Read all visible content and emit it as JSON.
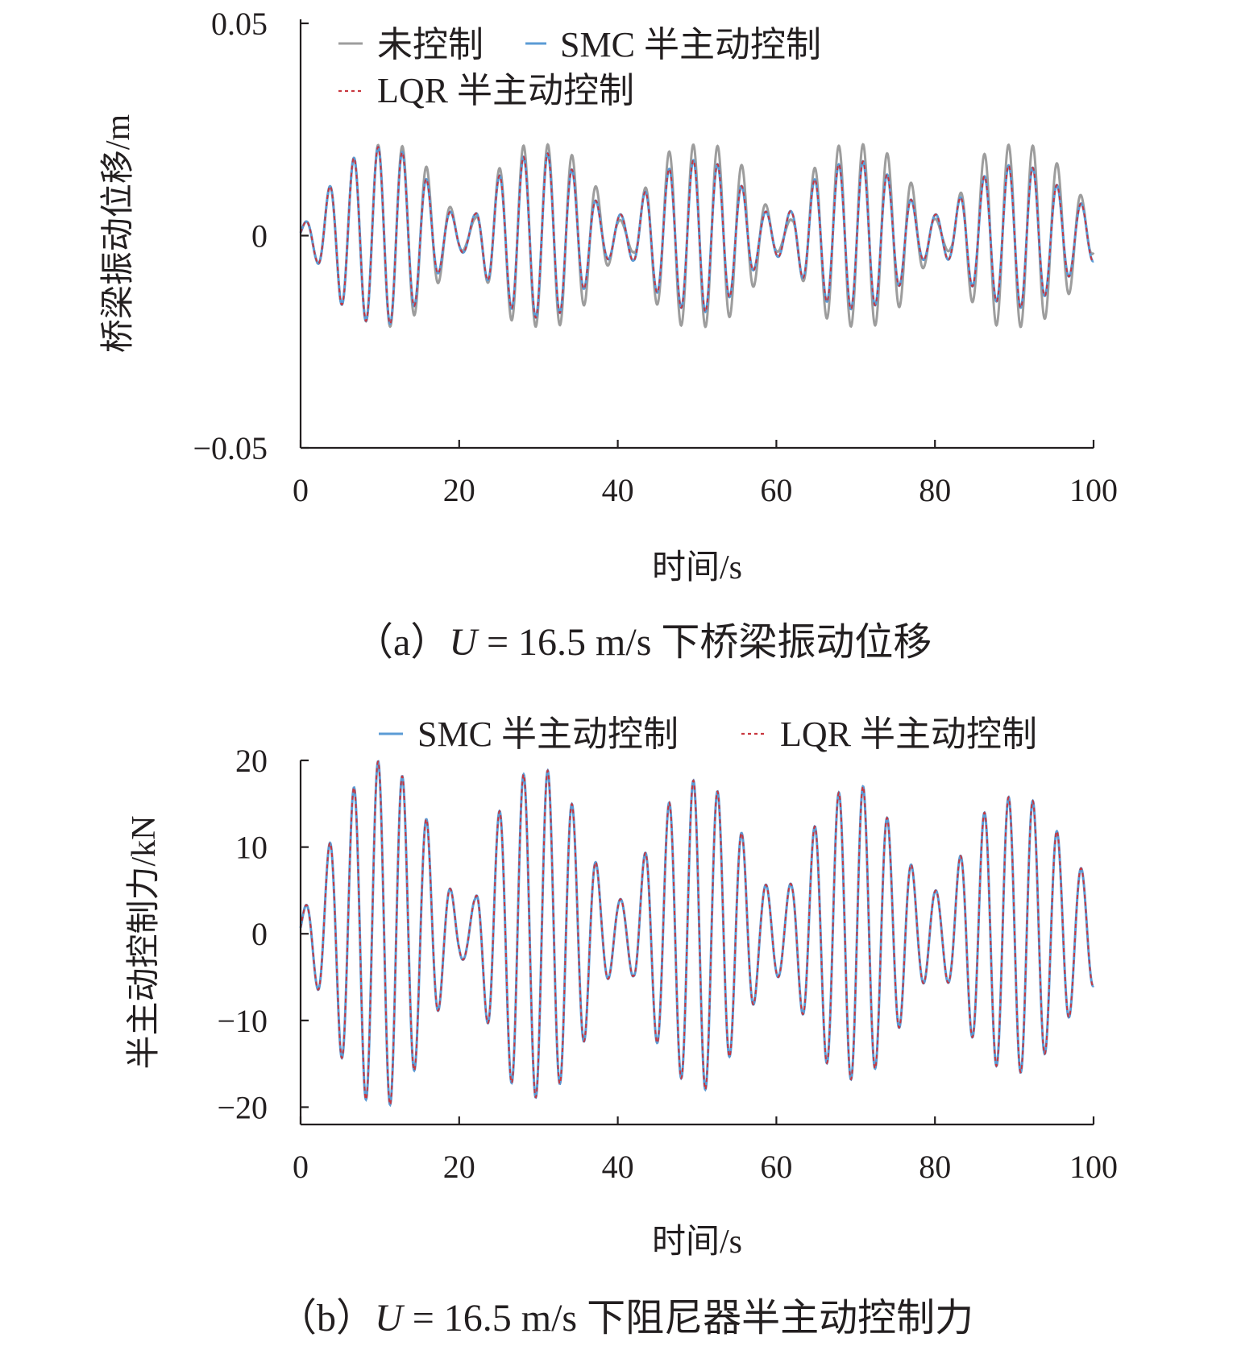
{
  "chart_data": [
    {
      "type": "line",
      "id": "a",
      "caption_prefix": "（a）",
      "caption_var": "U",
      "caption_rest": " = 16.5 m/s 下桥梁振动位移",
      "xlabel": "时间/s",
      "ylabel": "桥梁振动位移/m",
      "xlim": [
        0,
        100
      ],
      "ylim": [
        -0.05,
        0.05
      ],
      "xticks": [
        0,
        20,
        40,
        60,
        80,
        100
      ],
      "xtick_labels": [
        "0",
        "20",
        "40",
        "60",
        "80",
        "100"
      ],
      "yticks": [
        0.05,
        0,
        -0.05
      ],
      "ytick_labels": [
        "0.05",
        "0",
        "−0.05"
      ],
      "legend_position": "top-left",
      "frequency_hz": 0.327,
      "series": [
        {
          "name": "未控制",
          "color": "#9d9d9d",
          "style": "solid",
          "envelope": {
            "t": [
              0,
              2,
              5,
              8,
              10,
              11,
              13,
              16,
              18,
              20,
              21,
              22,
              24,
              27,
              30,
              31,
              33,
              36,
              38,
              40,
              41,
              42,
              44,
              47,
              50,
              51,
              53,
              56,
              58,
              60,
              61,
              62,
              64,
              67,
              70,
              71,
              73,
              76,
              78,
              80,
              81,
              82,
              84,
              87,
              90,
              91,
              93,
              96,
              98,
              100
            ],
            "v": [
              0.002,
              0.006,
              0.016,
              0.02,
              0.0215,
              0.0215,
              0.021,
              0.016,
              0.009,
              0.004,
              0.003,
              0.004,
              0.013,
              0.021,
              0.0215,
              0.0215,
              0.021,
              0.016,
              0.009,
              0.004,
              0.003,
              0.004,
              0.014,
              0.021,
              0.0215,
              0.0215,
              0.021,
              0.016,
              0.009,
              0.004,
              0.003,
              0.004,
              0.014,
              0.021,
              0.0215,
              0.0215,
              0.021,
              0.016,
              0.009,
              0.004,
              0.003,
              0.004,
              0.014,
              0.021,
              0.0215,
              0.0215,
              0.021,
              0.016,
              0.011,
              0.004
            ]
          }
        },
        {
          "name": "SMC 半主动控制",
          "color": "#5b9bd5",
          "style": "solid",
          "envelope": {
            "t": [
              0,
              2,
              5,
              8,
              10,
              11,
              13,
              16,
              18,
              20,
              21,
              22,
              24,
              27,
              30,
              31,
              33,
              36,
              38,
              40,
              41,
              42,
              44,
              47,
              50,
              51,
              53,
              56,
              58,
              60,
              61,
              62,
              64,
              67,
              70,
              71,
              73,
              76,
              78,
              80,
              81,
              82,
              84,
              87,
              90,
              91,
              93,
              96,
              98,
              100
            ],
            "v": [
              0.002,
              0.006,
              0.016,
              0.02,
              0.021,
              0.021,
              0.0195,
              0.013,
              0.007,
              0.004,
              0.004,
              0.005,
              0.012,
              0.018,
              0.0195,
              0.0195,
              0.018,
              0.012,
              0.006,
              0.005,
              0.005,
              0.006,
              0.012,
              0.0165,
              0.018,
              0.018,
              0.0165,
              0.011,
              0.006,
              0.005,
              0.005,
              0.006,
              0.012,
              0.0165,
              0.0175,
              0.0175,
              0.016,
              0.011,
              0.006,
              0.005,
              0.005,
              0.006,
              0.011,
              0.015,
              0.017,
              0.017,
              0.0155,
              0.011,
              0.008,
              0.006
            ]
          }
        },
        {
          "name": "LQR 半主动控制",
          "color": "#c8373f",
          "style": "dashed",
          "envelope": {
            "t": [
              0,
              2,
              5,
              8,
              10,
              11,
              13,
              16,
              18,
              20,
              21,
              22,
              24,
              27,
              30,
              31,
              33,
              36,
              38,
              40,
              41,
              42,
              44,
              47,
              50,
              51,
              53,
              56,
              58,
              60,
              61,
              62,
              64,
              67,
              70,
              71,
              73,
              76,
              78,
              80,
              81,
              82,
              84,
              87,
              90,
              91,
              93,
              96,
              98,
              100
            ],
            "v": [
              0.002,
              0.006,
              0.016,
              0.02,
              0.021,
              0.021,
              0.0195,
              0.013,
              0.007,
              0.004,
              0.004,
              0.005,
              0.012,
              0.018,
              0.0195,
              0.0195,
              0.018,
              0.012,
              0.006,
              0.005,
              0.005,
              0.006,
              0.012,
              0.0165,
              0.018,
              0.018,
              0.0165,
              0.011,
              0.006,
              0.005,
              0.005,
              0.006,
              0.012,
              0.0165,
              0.0175,
              0.0175,
              0.016,
              0.011,
              0.006,
              0.005,
              0.005,
              0.006,
              0.011,
              0.015,
              0.017,
              0.017,
              0.0155,
              0.011,
              0.008,
              0.006
            ]
          }
        }
      ]
    },
    {
      "type": "line",
      "id": "b",
      "caption_prefix": "（b）",
      "caption_var": "U",
      "caption_rest": " = 16.5 m/s 下阻尼器半主动控制力",
      "xlabel": "时间/s",
      "ylabel": "半主动控制力/kN",
      "xlim": [
        0,
        100
      ],
      "ylim": [
        -22,
        20
      ],
      "xticks": [
        0,
        20,
        40,
        60,
        80,
        100
      ],
      "xtick_labels": [
        "0",
        "20",
        "40",
        "60",
        "80",
        "100"
      ],
      "yticks": [
        20,
        10,
        0,
        -10,
        -20
      ],
      "ytick_labels": [
        "20",
        "10",
        "0",
        "−10",
        "−20"
      ],
      "legend_position": "top",
      "frequency_hz": 0.327,
      "series": [
        {
          "name": "SMC 半主动控制",
          "color": "#5b9bd5",
          "style": "solid",
          "envelope": {
            "t": [
              0,
              2,
              5,
              8,
              10,
              11,
              13,
              16,
              18,
              20,
              21,
              22,
              24,
              27,
              30,
              31,
              33,
              36,
              38,
              40,
              41,
              42,
              44,
              47,
              50,
              51,
              53,
              56,
              58,
              60,
              61,
              62,
              64,
              67,
              70,
              71,
              73,
              76,
              78,
              80,
              81,
              82,
              84,
              87,
              90,
              91,
              93,
              96,
              98,
              100
            ],
            "v": [
              2,
              6,
              14,
              19,
              20,
              20,
              18,
              13,
              7,
              3,
              3,
              4,
              12,
              18,
              19,
              19,
              17,
              12,
              6,
              4,
              4,
              5,
              11,
              16,
              18,
              18,
              16,
              11,
              6,
              5,
              5,
              6,
              11,
              16,
              17,
              17,
              15,
              10,
              6,
              5,
              5,
              6,
              11,
              15,
              16,
              16,
              15,
              11,
              8,
              6
            ]
          }
        },
        {
          "name": "LQR 半主动控制",
          "color": "#c8373f",
          "style": "dashed",
          "envelope": {
            "t": [
              0,
              2,
              5,
              8,
              10,
              11,
              13,
              16,
              18,
              20,
              21,
              22,
              24,
              27,
              30,
              31,
              33,
              36,
              38,
              40,
              41,
              42,
              44,
              47,
              50,
              51,
              53,
              56,
              58,
              60,
              61,
              62,
              64,
              67,
              70,
              71,
              73,
              76,
              78,
              80,
              81,
              82,
              84,
              87,
              90,
              91,
              93,
              96,
              98,
              100
            ],
            "v": [
              2,
              6,
              14,
              19,
              20,
              20,
              18,
              13,
              7,
              3,
              3,
              4,
              12,
              18,
              19,
              19,
              17,
              12,
              6,
              4,
              4,
              5,
              11,
              16,
              18,
              18,
              16,
              11,
              6,
              5,
              5,
              6,
              11,
              16,
              17,
              17,
              15,
              10,
              6,
              5,
              5,
              6,
              11,
              15,
              16,
              16,
              15,
              11,
              8,
              6
            ]
          }
        }
      ]
    }
  ]
}
